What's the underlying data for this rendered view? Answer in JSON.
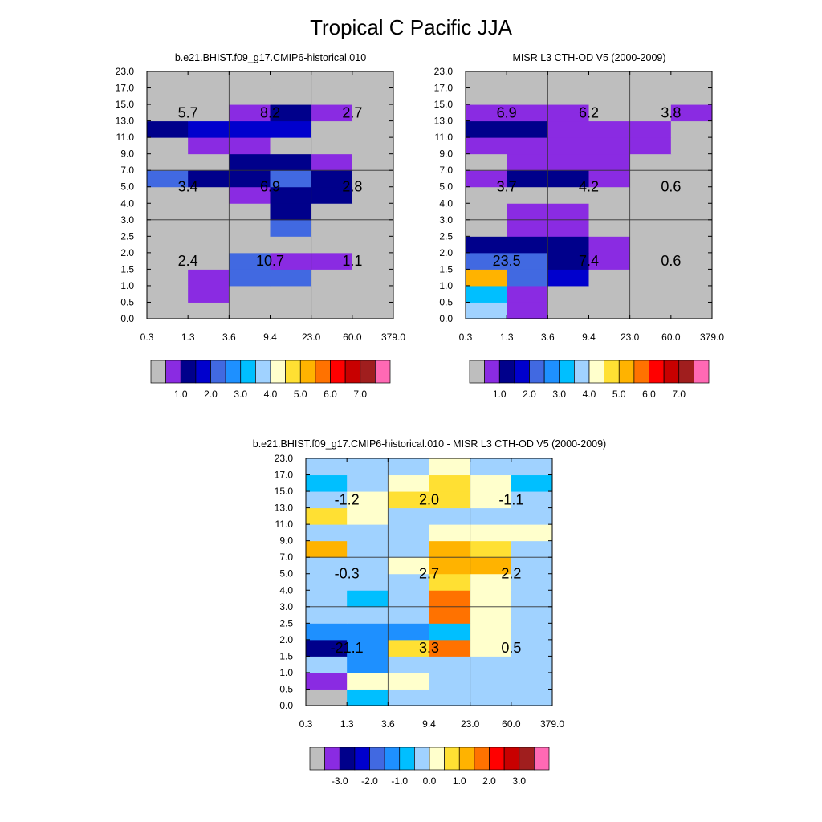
{
  "figure": {
    "title": "Tropical C Pacific JJA"
  },
  "axes": {
    "x_ticks": [
      "0.3",
      "1.3",
      "3.6",
      "9.4",
      "23.0",
      "60.0",
      "379.0"
    ],
    "y_ticks": [
      "0.0",
      "0.5",
      "1.0",
      "1.5",
      "2.0",
      "2.5",
      "3.0",
      "4.0",
      "5.0",
      "7.0",
      "9.0",
      "11.0",
      "13.0",
      "15.0",
      "17.0",
      "23.0"
    ]
  },
  "colors": {
    "bg_gray": "#bebebe",
    "abs_levels": [
      "#bebebe",
      "#8a2be2",
      "#00008b",
      "#0000cd",
      "#4169e1",
      "#1e90ff",
      "#00bfff",
      "#a0d2ff",
      "#ffffcc",
      "#ffe033",
      "#ffb300",
      "#ff7200",
      "#ff0000",
      "#c80000",
      "#a01e1e",
      "#ff69b4"
    ],
    "diff_levels": [
      "#bebebe",
      "#8a2be2",
      "#00008b",
      "#0000cd",
      "#4169e1",
      "#1e90ff",
      "#00bfff",
      "#a0d2ff",
      "#ffffcc",
      "#ffe033",
      "#ffb300",
      "#ff7200",
      "#ff0000",
      "#c80000",
      "#a01e1e",
      "#ff69b4"
    ]
  },
  "colorbars": {
    "abs_labels": [
      "1.0",
      "2.0",
      "3.0",
      "4.0",
      "5.0",
      "6.0",
      "7.0"
    ],
    "diff_labels": [
      "-3.0",
      "-2.0",
      "-1.0",
      "0.0",
      "1.0",
      "2.0",
      "3.0"
    ]
  },
  "chart_data": [
    {
      "type": "heatmap",
      "title": "b.e21.BHIST.f09_g17.CMIP6-historical.010",
      "xlabel": "",
      "ylabel": "",
      "grid": [
        [
          0,
          0,
          0,
          0,
          0,
          0
        ],
        [
          0,
          1,
          0,
          0,
          0,
          0
        ],
        [
          0,
          1,
          4,
          4,
          0,
          0
        ],
        [
          0,
          0,
          4,
          1,
          1,
          0
        ],
        [
          0,
          0,
          0,
          0,
          0,
          0
        ],
        [
          0,
          0,
          0,
          4,
          0,
          0
        ],
        [
          0,
          0,
          0,
          2,
          0,
          0
        ],
        [
          0,
          0,
          1,
          2,
          2,
          0
        ],
        [
          4,
          2,
          2,
          4,
          2,
          0
        ],
        [
          0,
          0,
          2,
          2,
          1,
          0
        ],
        [
          0,
          1,
          1,
          0,
          0,
          0
        ],
        [
          2,
          3,
          3,
          3,
          0,
          0
        ],
        [
          0,
          0,
          1,
          2,
          1,
          0
        ],
        [
          0,
          0,
          0,
          0,
          0,
          0
        ],
        [
          0,
          0,
          0,
          0,
          0,
          0
        ]
      ],
      "annotations": [
        {
          "col": 0.5,
          "row": 12,
          "text": "5.7"
        },
        {
          "col": 2.5,
          "row": 12,
          "text": "8.2"
        },
        {
          "col": 4.5,
          "row": 12,
          "text": "2.7"
        },
        {
          "col": 0.5,
          "row": 7.5,
          "text": "3.4"
        },
        {
          "col": 2.5,
          "row": 7.5,
          "text": "6.9"
        },
        {
          "col": 4.5,
          "row": 7.5,
          "text": "2.8"
        },
        {
          "col": 0.5,
          "row": 3,
          "text": "2.4"
        },
        {
          "col": 2.5,
          "row": 3,
          "text": "10.7"
        },
        {
          "col": 4.5,
          "row": 3,
          "text": "1.1"
        }
      ]
    },
    {
      "type": "heatmap",
      "title": "MISR L3 CTH-OD V5 (2000-2009)",
      "xlabel": "",
      "ylabel": "",
      "grid": [
        [
          7,
          1,
          0,
          0,
          0,
          0
        ],
        [
          6,
          1,
          0,
          0,
          0,
          0
        ],
        [
          10,
          4,
          3,
          0,
          0,
          0
        ],
        [
          4,
          4,
          2,
          1,
          0,
          0
        ],
        [
          2,
          2,
          2,
          1,
          0,
          0
        ],
        [
          0,
          1,
          1,
          0,
          0,
          0
        ],
        [
          0,
          1,
          1,
          0,
          0,
          0
        ],
        [
          0,
          0,
          0,
          0,
          0,
          0
        ],
        [
          1,
          2,
          2,
          1,
          0,
          0
        ],
        [
          0,
          1,
          1,
          1,
          0,
          0
        ],
        [
          1,
          1,
          1,
          1,
          1,
          0
        ],
        [
          2,
          2,
          1,
          1,
          1,
          0
        ],
        [
          1,
          1,
          1,
          0,
          0,
          1
        ],
        [
          0,
          0,
          0,
          0,
          0,
          0
        ],
        [
          0,
          0,
          0,
          0,
          0,
          0
        ]
      ],
      "annotations": [
        {
          "col": 0.5,
          "row": 12,
          "text": "6.9"
        },
        {
          "col": 2.5,
          "row": 12,
          "text": "6.2"
        },
        {
          "col": 4.5,
          "row": 12,
          "text": "3.8"
        },
        {
          "col": 0.5,
          "row": 7.5,
          "text": "3.7"
        },
        {
          "col": 2.5,
          "row": 7.5,
          "text": "4.2"
        },
        {
          "col": 4.5,
          "row": 7.5,
          "text": "0.6"
        },
        {
          "col": 0.5,
          "row": 3,
          "text": "23.5"
        },
        {
          "col": 2.5,
          "row": 3,
          "text": "7.4"
        },
        {
          "col": 4.5,
          "row": 3,
          "text": "0.6"
        }
      ]
    },
    {
      "type": "heatmap",
      "title": "b.e21.BHIST.f09_g17.CMIP6-historical.010 - MISR L3 CTH-OD V5 (2000-2009)",
      "xlabel": "",
      "ylabel": "",
      "grid": [
        [
          0,
          6,
          7,
          7,
          7,
          7
        ],
        [
          1,
          8,
          8,
          7,
          7,
          7
        ],
        [
          7,
          5,
          7,
          7,
          7,
          7
        ],
        [
          2,
          5,
          9,
          11,
          8,
          7
        ],
        [
          5,
          5,
          5,
          6,
          8,
          7
        ],
        [
          7,
          7,
          7,
          11,
          8,
          7
        ],
        [
          7,
          6,
          7,
          11,
          8,
          7
        ],
        [
          7,
          7,
          7,
          9,
          8,
          7
        ],
        [
          7,
          7,
          8,
          10,
          10,
          7
        ],
        [
          10,
          7,
          7,
          10,
          9,
          7
        ],
        [
          7,
          7,
          7,
          8,
          8,
          8
        ],
        [
          9,
          8,
          7,
          7,
          7,
          7
        ],
        [
          7,
          8,
          9,
          9,
          8,
          7
        ],
        [
          6,
          7,
          8,
          9,
          8,
          6
        ],
        [
          7,
          7,
          7,
          8,
          7,
          7
        ]
      ],
      "annotations": [
        {
          "col": 0.5,
          "row": 12,
          "text": "-1.2"
        },
        {
          "col": 2.5,
          "row": 12,
          "text": "2.0"
        },
        {
          "col": 4.5,
          "row": 12,
          "text": "-1.1"
        },
        {
          "col": 0.5,
          "row": 7.5,
          "text": "-0.3"
        },
        {
          "col": 2.5,
          "row": 7.5,
          "text": "2.7"
        },
        {
          "col": 4.5,
          "row": 7.5,
          "text": "2.2"
        },
        {
          "col": 0.5,
          "row": 3,
          "text": "-21.1"
        },
        {
          "col": 2.5,
          "row": 3,
          "text": "3.3"
        },
        {
          "col": 4.5,
          "row": 3,
          "text": "0.5"
        }
      ]
    }
  ]
}
